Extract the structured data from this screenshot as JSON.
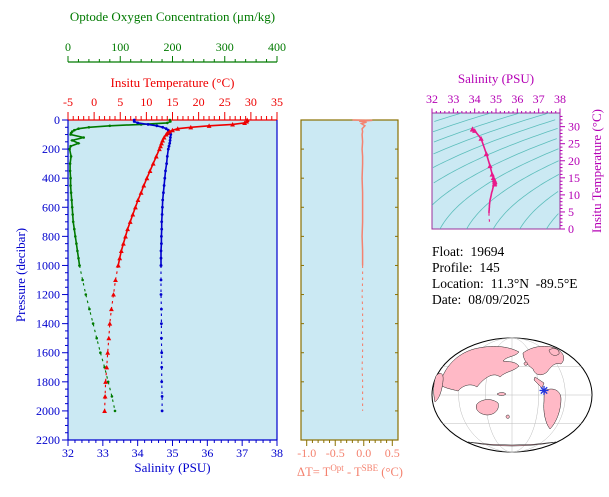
{
  "colors": {
    "oxygen": "#007a00",
    "temperature": "#ee0000",
    "salinity": "#0000cd",
    "delta": "#f4826f",
    "delta_box": "#8a7000",
    "ts_axis": "#b400b4",
    "ts_curve": "#e8198b",
    "contour": "#49b6b2",
    "plot_bg": "#cbe9f3",
    "map_land": "#ffb9c6",
    "map_outline": "#000000",
    "marker": "#2233dd"
  },
  "main_plot": {
    "oxygen_title": "Optode Oxygen Concentration (μm/kg)",
    "temperature_title": "Insitu Temperature (°C)",
    "salinity_title": "Salinity (PSU)",
    "pressure_title": "Pressure (decibar)",
    "oxygen_ticks": [
      0,
      100,
      200,
      300,
      400
    ],
    "temperature_ticks": [
      -5,
      0,
      5,
      10,
      15,
      20,
      25,
      30,
      35
    ],
    "salinity_ticks": [
      32,
      33,
      34,
      35,
      36,
      37,
      38
    ],
    "pressure_ticks": [
      0,
      200,
      400,
      600,
      800,
      1000,
      1200,
      1400,
      1600,
      1800,
      2000,
      2200
    ]
  },
  "delta_plot": {
    "x_ticks": [
      -1.0,
      -0.5,
      0.0,
      0.5
    ],
    "x_tick_labels": [
      "-1.0",
      "-0.5",
      "0.0",
      "0.5"
    ],
    "title_parts": {
      "prefix": "ΔT= T",
      "sup1": "Opt",
      "mid": " - T",
      "sup2": "SBE",
      "suffix": " (°C)"
    }
  },
  "ts_plot": {
    "salinity_title": "Salinity (PSU)",
    "temperature_title": "Insitu Temperature (°C)",
    "salinity_ticks": [
      32,
      33,
      34,
      35,
      36,
      37,
      38
    ],
    "temperature_ticks": [
      0,
      5,
      10,
      15,
      20,
      25,
      30
    ]
  },
  "info": {
    "rows": [
      {
        "label": "Float:",
        "value": "19694"
      },
      {
        "label": "Profile:",
        "value": "145"
      },
      {
        "label": "Location:",
        "value": "11.3°N  -89.5°E"
      },
      {
        "label": "Date:",
        "value": "08/09/2025"
      }
    ]
  },
  "map": {
    "marker_fx": 0.7,
    "marker_fy": 0.46
  },
  "chart_data": [
    {
      "type": "line",
      "title": "Vertical profiles of oxygen, temperature and salinity vs pressure",
      "ylabel": "Pressure (decibar)",
      "ylim": [
        0,
        2200
      ],
      "y_inverted": true,
      "dashed_below_pressure": 1000,
      "pressure": [
        0,
        10,
        20,
        30,
        40,
        50,
        60,
        70,
        80,
        90,
        100,
        120,
        140,
        160,
        180,
        200,
        250,
        300,
        350,
        400,
        450,
        500,
        550,
        600,
        650,
        700,
        750,
        800,
        850,
        900,
        950,
        1000,
        1100,
        1200,
        1300,
        1400,
        1500,
        1600,
        1700,
        1800,
        1900,
        2000
      ],
      "series": [
        {
          "key": "oxygen",
          "name": "Optode Oxygen Concentration (μm/kg)",
          "xlim": [
            0,
            400
          ],
          "values": [
            195,
            196,
            190,
            140,
            80,
            40,
            20,
            12,
            8,
            6,
            5,
            30,
            8,
            20,
            5,
            3,
            6,
            4,
            4,
            5,
            5,
            6,
            7,
            8,
            9,
            10,
            12,
            14,
            16,
            18,
            20,
            22,
            28,
            34,
            41,
            48,
            55,
            62,
            70,
            77,
            84,
            90
          ]
        },
        {
          "key": "temperature",
          "name": "Insitu Temperature (°C)",
          "xlim": [
            -5,
            35
          ],
          "values": [
            29.3,
            29.2,
            28.8,
            26.5,
            22.0,
            18.5,
            16.0,
            15.0,
            14.4,
            14.0,
            13.8,
            13.4,
            13.1,
            12.9,
            12.7,
            12.5,
            11.9,
            11.3,
            10.7,
            10.1,
            9.5,
            9.0,
            8.4,
            7.9,
            7.4,
            6.9,
            6.4,
            6.0,
            5.6,
            5.2,
            4.9,
            4.6,
            4.1,
            3.7,
            3.3,
            3.0,
            2.8,
            2.6,
            2.4,
            2.2,
            2.1,
            2.0
          ]
        },
        {
          "key": "salinity",
          "name": "Salinity (PSU)",
          "xlim": [
            32,
            38
          ],
          "values": [
            33.9,
            33.9,
            34.0,
            34.3,
            34.55,
            34.72,
            34.82,
            34.88,
            34.92,
            34.94,
            34.95,
            34.94,
            34.93,
            34.92,
            34.9,
            34.88,
            34.85,
            34.83,
            34.8,
            34.78,
            34.76,
            34.74,
            34.72,
            34.71,
            34.7,
            34.69,
            34.69,
            34.68,
            34.68,
            34.67,
            34.67,
            34.67,
            34.67,
            34.67,
            34.68,
            34.68,
            34.68,
            34.69,
            34.69,
            34.69,
            34.7,
            34.7
          ]
        }
      ]
    },
    {
      "type": "line",
      "title": "ΔT = T_Opt − T_SBE (°C) vs pressure",
      "xlim": [
        -1.1,
        0.6
      ],
      "x_ticks": [
        -1.0,
        -0.5,
        0.0,
        0.5
      ],
      "ylim": [
        0,
        2200
      ],
      "y_inverted": true,
      "dashed_below_pressure": 1000,
      "pressure": [
        0,
        3,
        8,
        15,
        25,
        40,
        60,
        80,
        100,
        150,
        200,
        250,
        300,
        400,
        500,
        600,
        700,
        800,
        900,
        1000,
        1100,
        1200,
        1300,
        1400,
        1500,
        1600,
        1700,
        1800,
        1900,
        2000
      ],
      "values": [
        -0.2,
        0.15,
        -0.08,
        0.05,
        -0.04,
        0.02,
        -0.03,
        -0.02,
        -0.03,
        -0.02,
        -0.03,
        -0.02,
        -0.02,
        -0.03,
        -0.02,
        -0.02,
        -0.02,
        -0.03,
        -0.02,
        -0.02,
        -0.02,
        -0.03,
        -0.02,
        -0.02,
        -0.02,
        -0.02,
        -0.03,
        -0.02,
        -0.02,
        -0.02
      ]
    },
    {
      "type": "line",
      "title": "Temperature–Salinity diagram with isopycnal contours",
      "xlabel": "Salinity (PSU)",
      "xlim": [
        32,
        38
      ],
      "ylabel": "Insitu Temperature (°C)",
      "ylim": [
        0,
        34
      ],
      "isopycnals": [
        19,
        20,
        21,
        22,
        23,
        24,
        25,
        26,
        27,
        28,
        29,
        30
      ],
      "salinity": [
        33.9,
        33.9,
        34.0,
        34.3,
        34.55,
        34.72,
        34.82,
        34.88,
        34.92,
        34.94,
        34.95,
        34.94,
        34.93,
        34.92,
        34.9,
        34.88,
        34.85,
        34.83,
        34.8,
        34.78,
        34.76,
        34.74,
        34.72,
        34.71,
        34.7,
        34.69,
        34.69,
        34.68,
        34.68,
        34.67,
        34.67,
        34.67,
        34.67,
        34.67,
        34.68,
        34.68,
        34.68,
        34.69,
        34.69,
        34.69,
        34.7,
        34.7
      ],
      "temperature": [
        29.3,
        29.2,
        28.8,
        26.5,
        22.0,
        18.5,
        16.0,
        15.0,
        14.4,
        14.0,
        13.8,
        13.4,
        13.1,
        12.9,
        12.7,
        12.5,
        11.9,
        11.3,
        10.7,
        10.1,
        9.5,
        9.0,
        8.4,
        7.9,
        7.4,
        6.9,
        6.4,
        6.0,
        5.6,
        5.2,
        4.9,
        4.6,
        4.1,
        3.7,
        3.3,
        3.0,
        2.8,
        2.6,
        2.4,
        2.2,
        2.1,
        2.0
      ]
    }
  ]
}
